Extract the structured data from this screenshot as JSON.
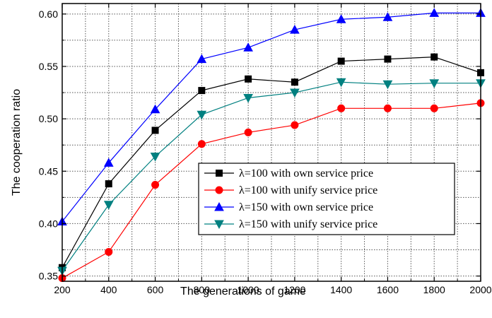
{
  "chart_data": {
    "type": "line",
    "xlabel": "The generations of game",
    "ylabel": "The cooperation ratio",
    "x": [
      200,
      400,
      600,
      800,
      1000,
      1200,
      1400,
      1600,
      1800,
      2000
    ],
    "xlim": [
      200,
      2000
    ],
    "ylim": [
      0.345,
      0.61
    ],
    "xticks": [
      "200",
      "400",
      "600",
      "800",
      "1000",
      "1200",
      "1400",
      "1600",
      "1800",
      "2000"
    ],
    "yticks": [
      "0.35",
      "0.40",
      "0.45",
      "0.50",
      "0.55",
      "0.60"
    ],
    "grid": true,
    "legend_position": "center-right",
    "series": [
      {
        "name": "λ=100 with own service price",
        "color": "#000000",
        "marker": "square",
        "values": [
          0.358,
          0.438,
          0.489,
          0.527,
          0.538,
          0.535,
          0.555,
          0.557,
          0.559,
          0.544
        ]
      },
      {
        "name": "λ=100  with unify service price",
        "color": "#ff0000",
        "marker": "circle",
        "values": [
          0.348,
          0.373,
          0.437,
          0.476,
          0.487,
          0.494,
          0.51,
          0.51,
          0.51,
          0.515
        ]
      },
      {
        "name": "λ=150 with own service price",
        "color": "#0000ff",
        "marker": "triangle-up",
        "values": [
          0.402,
          0.458,
          0.509,
          0.557,
          0.568,
          0.585,
          0.595,
          0.597,
          0.601,
          0.601
        ]
      },
      {
        "name": "λ=150  with unify service price",
        "color": "#008080",
        "marker": "triangle-down",
        "values": [
          0.355,
          0.418,
          0.464,
          0.504,
          0.52,
          0.525,
          0.535,
          0.533,
          0.534,
          0.534
        ]
      }
    ]
  }
}
